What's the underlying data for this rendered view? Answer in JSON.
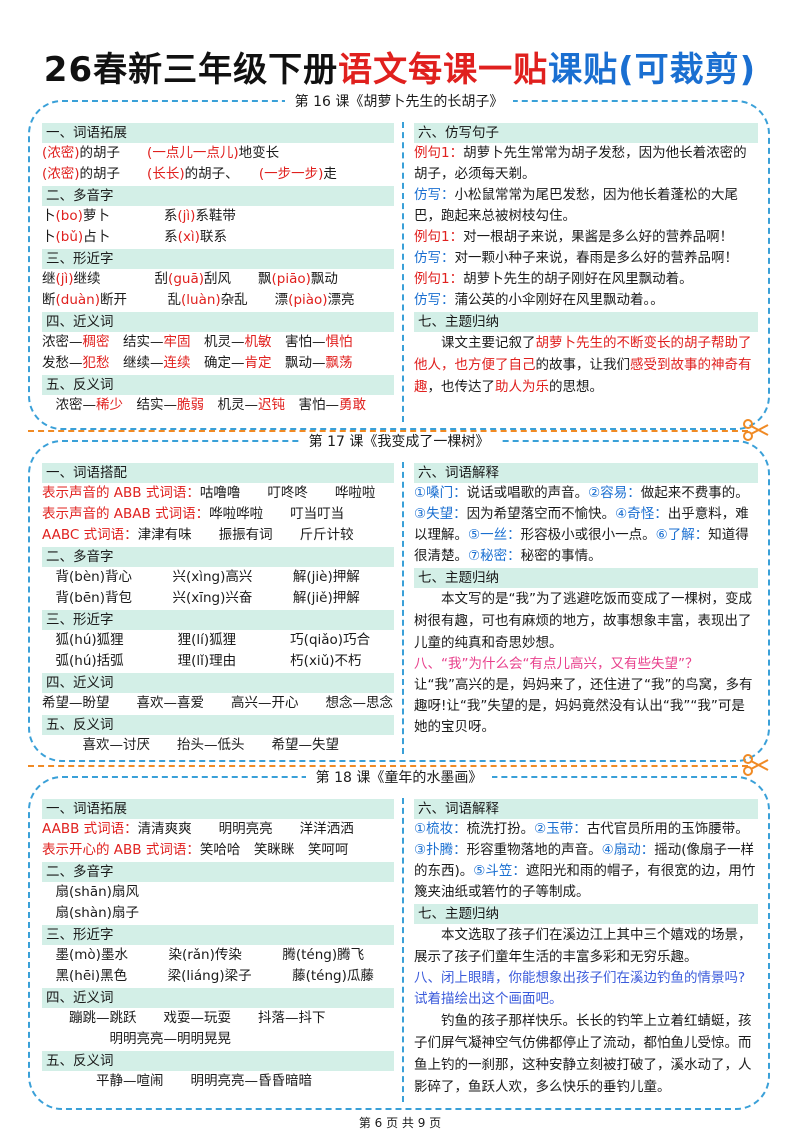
{
  "header": {
    "title": [
      [
        "26春新三年级下册",
        "#111111"
      ],
      [
        "语文每课一贴",
        "#e0201e"
      ],
      [
        "课贴(可裁剪)",
        "#1a6fd1"
      ]
    ]
  },
  "lessons": [
    {
      "title": "第 16 课《胡萝卜先生的长胡子》",
      "left": [
        {
          "heading": "一、词语拓展",
          "lines": [
            [
              [
                "(浓密)",
                "#e0201e"
              ],
              "的胡子　　",
              [
                "(一点儿一点儿)",
                "#e0201e"
              ],
              "地变长"
            ],
            [
              [
                "(浓密)",
                "#e0201e"
              ],
              "的胡子　　",
              [
                "(长长)",
                "#e0201e"
              ],
              "的胡子、　　",
              [
                "(一步一步)",
                "#e0201e"
              ],
              "走"
            ]
          ]
        },
        {
          "heading": "二、多音字",
          "lines": [
            [
              "卜",
              [
                "(bo)",
                "#e0201e"
              ],
              "萝卜　　　　系",
              [
                "(jì)",
                "#e0201e"
              ],
              "系鞋带"
            ],
            [
              "卜",
              [
                "(bǔ)",
                "#e0201e"
              ],
              "占卜　　　　系",
              [
                "(xì)",
                "#e0201e"
              ],
              "联系"
            ]
          ]
        },
        {
          "heading": "三、形近字",
          "lines": [
            [
              "继",
              [
                "(jì)",
                "#e0201e"
              ],
              "继续　　　　刮",
              [
                "(guā)",
                "#e0201e"
              ],
              "刮风　　飘",
              [
                "(piāo)",
                "#e0201e"
              ],
              "飘动"
            ],
            [
              "断",
              [
                "(duàn)",
                "#e0201e"
              ],
              "断开　　　乱",
              [
                "(luàn)",
                "#e0201e"
              ],
              "杂乱　　漂",
              [
                "(piào)",
                "#e0201e"
              ],
              "漂亮"
            ]
          ]
        },
        {
          "heading": "四、近义词",
          "lines": [
            [
              "浓密—",
              [
                "稠密",
                "#e0201e"
              ],
              "　结实—",
              [
                "牢固",
                "#e0201e"
              ],
              "　机灵—",
              [
                "机敏",
                "#e0201e"
              ],
              "　害怕—",
              [
                "惧怕",
                "#e0201e"
              ]
            ],
            [
              "发愁—",
              [
                "犯愁",
                "#e0201e"
              ],
              "　继续—",
              [
                "连续",
                "#e0201e"
              ],
              "　确定—",
              [
                "肯定",
                "#e0201e"
              ],
              "　飘动—",
              [
                "飘荡",
                "#e0201e"
              ]
            ]
          ]
        },
        {
          "heading": "五、反义词",
          "lines": [
            [
              "　浓密—",
              [
                "稀少",
                "#e0201e"
              ],
              "　结实—",
              [
                "脆弱",
                "#e0201e"
              ],
              "　机灵—",
              [
                "迟钝",
                "#e0201e"
              ],
              "　害怕—",
              [
                "勇敢",
                "#e0201e"
              ]
            ]
          ]
        }
      ],
      "right": [
        {
          "heading": "六、仿写句子",
          "lines": [
            [
              [
                "例句1：",
                "#e0201e"
              ],
              "胡萝卜先生常常为胡子发愁，因为他长着浓密的胡子，必须每天剃。"
            ],
            [
              [
                "仿写：",
                "#1a6fd1"
              ],
              "小松鼠常常为尾巴发愁，因为他长着蓬松的大尾巴，跑起来总被树枝勾住。"
            ],
            [
              [
                "例句1：",
                "#e0201e"
              ],
              "对一根胡子来说，果酱是多么好的营养品啊！"
            ],
            [
              [
                "仿写：",
                "#1a6fd1"
              ],
              "对一颗小种子来说，春雨是多么好的营养品啊！"
            ],
            [
              [
                "例句1：",
                "#e0201e"
              ],
              "胡萝卜先生的胡子刚好在风里飘动着。"
            ],
            [
              [
                "仿写：",
                "#1a6fd1"
              ],
              "蒲公英的小伞刚好在风里飘动着。。"
            ]
          ]
        },
        {
          "heading": "七、主题归纳",
          "paragraphs": [
            [
              "课文主要记叙了",
              [
                "胡萝卜先生的不断变长的胡子帮助了他人，也方便了自己",
                "#e0201e"
              ],
              "的故事，让我们",
              [
                "感受到故事的神奇有趣",
                "#e0201e"
              ],
              "，也传达了",
              [
                "助人为乐",
                "#e0201e"
              ],
              "的思想。"
            ]
          ]
        }
      ]
    },
    {
      "title": "第 17 课《我变成了一棵树》",
      "left": [
        {
          "heading": "一、词语搭配",
          "lines": [
            [
              [
                "表示声音的 ABB 式词语：",
                "#e0201e"
              ],
              "咕噜噜　　叮咚咚　　哗啦啦"
            ],
            [
              [
                "表示声音的 ABAB 式词语：",
                "#e0201e"
              ],
              "哗啦哗啦　　叮当叮当"
            ],
            [
              [
                "AABC 式词语：",
                "#e0201e"
              ],
              "津津有味　　振振有词　　斤斤计较"
            ]
          ]
        },
        {
          "heading": "二、多音字",
          "lines": [
            [
              "　背(bèn)背心　　　兴(xìng)高兴　　　解(jiè)押解"
            ],
            [
              "　背(bēn)背包　　　兴(xīng)兴奋　　　解(jiě)押解"
            ]
          ]
        },
        {
          "heading": "三、形近字",
          "lines": [
            [
              "　狐(hú)狐狸　　　　狸(lí)狐狸　　　　巧(qiǎo)巧合"
            ],
            [
              "　弧(hú)括弧　　　　理(lǐ)理由　　　　朽(xiǔ)不朽"
            ]
          ]
        },
        {
          "heading": "四、近义词",
          "lines": [
            [
              "希望—盼望　　喜欢—喜爱　　高兴—开心　　想念—思念"
            ]
          ]
        },
        {
          "heading": "五、反义词",
          "lines": [
            [
              "　　　喜欢—讨厌　　抬头—低头　　希望—失望"
            ]
          ]
        }
      ],
      "right": [
        {
          "heading": "六、词语解释",
          "lines": [
            [
              [
                "①嗓门：",
                "#1a6fd1"
              ],
              "说话或唱歌的声音。",
              [
                "②容易：",
                "#1a6fd1"
              ],
              "做起来不费事的。",
              [
                "③失望：",
                "#1a6fd1"
              ],
              "因为希望落空而不愉快。",
              [
                "④奇怪：",
                "#1a6fd1"
              ],
              "出乎意料，难以理解。",
              [
                "⑤一丝：",
                "#1a6fd1"
              ],
              "形容极小或很小一点。",
              [
                "⑥了解：",
                "#1a6fd1"
              ],
              "知道得很清楚。",
              [
                "⑦秘密：",
                "#1a6fd1"
              ],
              "秘密的事情。"
            ]
          ]
        },
        {
          "heading": "七、主题归纳",
          "paragraphs": [
            [
              "本文写的是“我”为了逃避吃饭而变成了一棵树，变成树很有趣，可也有麻烦的地方，故事想象丰富，表现出了儿童的纯真和奇思妙想。"
            ]
          ]
        },
        {
          "heading": "八、“我”为什么会“有点儿高兴，又有些失望”？",
          "heading_color": "#e8408c",
          "lines": [
            [
              "让“我”高兴的是，妈妈来了，还住进了“我”的鸟窝，多有趣呀!让“我”失望的是，妈妈竟然没有认出“我”“我”可是她的宝贝呀。"
            ]
          ]
        }
      ]
    },
    {
      "title": "第 18 课《童年的水墨画》",
      "left": [
        {
          "heading": "一、词语拓展",
          "lines": [
            [
              [
                "AABB 式词语：",
                "#e0201e"
              ],
              "清清爽爽　　明明亮亮　　洋洋洒洒"
            ],
            [
              [
                "表示开心的 ABB 式词语：",
                "#e0201e"
              ],
              "笑哈哈　笑眯眯　笑呵呵"
            ]
          ]
        },
        {
          "heading": "二、多音字",
          "lines": [
            [
              "　扇(shān)扇风"
            ],
            [
              "　扇(shàn)扇子"
            ]
          ]
        },
        {
          "heading": "三、形近字",
          "lines": [
            [
              "　墨(mò)墨水　　　染(rǎn)传染　　　腾(téng)腾飞"
            ],
            [
              "　黑(hēi)黑色　　　梁(liáng)梁子　　　藤(téng)瓜藤"
            ]
          ]
        },
        {
          "heading": "四、近义词",
          "lines": [
            [
              "　　蹦跳—跳跃　　戏耍—玩耍　　抖落—抖下"
            ],
            [
              "　　　　　明明亮亮—明明晃晃"
            ]
          ]
        },
        {
          "heading": "五、反义词",
          "lines": [
            [
              "　　　　平静—喧闹　　明明亮亮—昏昏暗暗"
            ]
          ]
        }
      ],
      "right": [
        {
          "heading": "六、词语解释",
          "lines": [
            [
              [
                "①梳妆：",
                "#1a6fd1"
              ],
              "梳洗打扮。",
              [
                "②玉带：",
                "#1a6fd1"
              ],
              "古代官员所用的玉饰腰带。",
              [
                "③扑腾：",
                "#1a6fd1"
              ],
              "形容重物落地的声音。",
              [
                "④扇动：",
                "#1a6fd1"
              ],
              "摇动(像扇子一样的东西)。",
              [
                "⑤斗笠：",
                "#1a6fd1"
              ],
              "遮阳光和雨的帽子，有很宽的边，用竹篾夹油纸或箬竹的子等制成。"
            ]
          ]
        },
        {
          "heading": "七、主题归纳",
          "paragraphs": [
            [
              "本文选取了孩子们在溪边江上其中三个嬉戏的场景，展示了孩子们童年生活的丰富多彩和无穷乐趣。"
            ]
          ]
        },
        {
          "heading": "八、闭上眼睛，你能想象出孩子们在溪边钓鱼的情景吗?试着描绘出这个画面吧。",
          "heading_color": "#3b5bdb",
          "paragraphs": [
            [
              "钓鱼的孩子那样快乐。长长的钓竿上立着红蜻蜓，孩子们屏气凝神空气仿佛都停止了流动，都怕鱼儿受惊。而鱼上钓的一刹那，这种安静立刻被打破了，溪水动了，人影碎了，鱼跃人欢，多么快乐的垂钓儿童。"
            ]
          ]
        }
      ]
    }
  ],
  "footer": "第 6 页 共 9 页"
}
